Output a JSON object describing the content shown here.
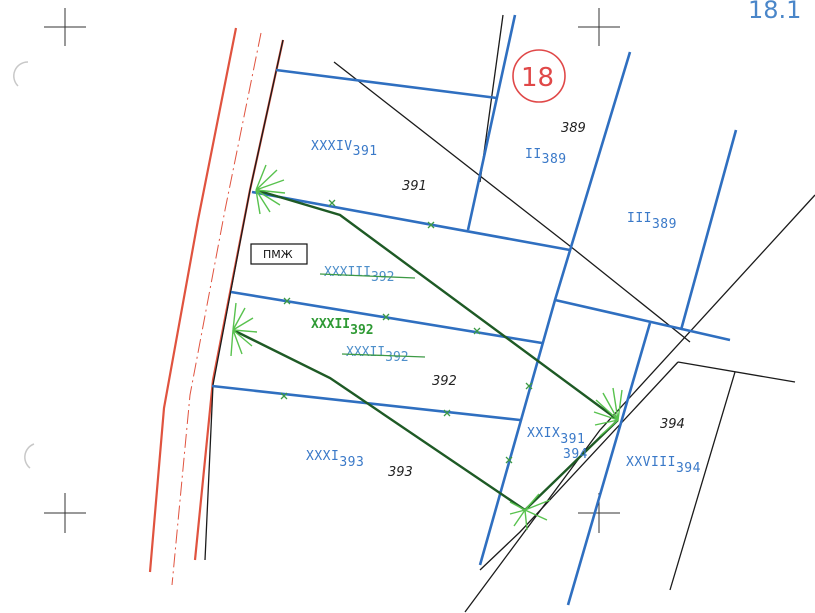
{
  "sheet": {
    "corner_label": "18.1",
    "sheet_badge": "18",
    "marker_label": "ПМЖ"
  },
  "parcels": [
    {
      "id": "xxxiv-391",
      "label": "XXXIV",
      "subscript": "391",
      "number": "391"
    },
    {
      "id": "ii-389",
      "label": "II",
      "subscript": "389",
      "number": "389"
    },
    {
      "id": "iii-389",
      "label": "III",
      "subscript": "389"
    },
    {
      "id": "xxxiii-392",
      "label": "XXXIII",
      "subscript": "392",
      "status": "struck-out"
    },
    {
      "id": "xxxii-392",
      "label": "XXXII",
      "subscript": "392",
      "status": "new"
    },
    {
      "id": "xxxii-392-old",
      "label": "XXXII",
      "subscript": "392",
      "status": "struck-out",
      "number": "392"
    },
    {
      "id": "xxix-391",
      "label": "XXIX",
      "subscript": "391",
      "note": "394"
    },
    {
      "id": "xxxi-393",
      "label": "XXXI",
      "subscript": "393",
      "number": "393"
    },
    {
      "id": "xxviii-394",
      "label": "XXVIII",
      "subscript": "394",
      "number": "394"
    }
  ],
  "colors": {
    "parcel_boundary": "#2f6fc0",
    "cadastral_line": "#1b1b1b",
    "road_edge": "#e0533f",
    "new_boundary": "#1e5a25",
    "hatching": "#58c24e",
    "badge": "#e04848"
  }
}
